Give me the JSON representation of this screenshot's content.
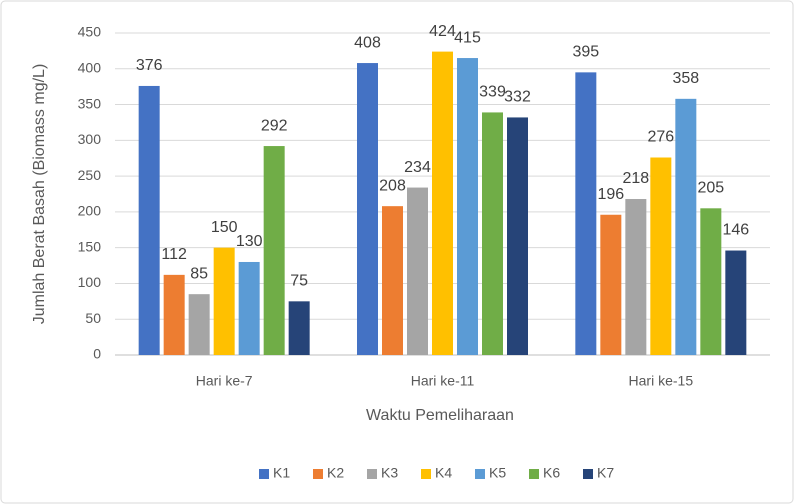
{
  "chart_data": {
    "type": "bar",
    "x_label": "Waktu Pemeliharaan",
    "y_label": "Jumlah Berat Basah (Biomass mg/L)",
    "categories": [
      "Hari ke-7",
      "Hari ke-11",
      "Hari ke-15"
    ],
    "series": [
      {
        "name": "K1",
        "color": "#4472c4",
        "values": [
          376,
          408,
          395
        ]
      },
      {
        "name": "K2",
        "color": "#ed7d31",
        "values": [
          112,
          208,
          196
        ]
      },
      {
        "name": "K3",
        "color": "#a5a5a5",
        "values": [
          85,
          234,
          218
        ]
      },
      {
        "name": "K4",
        "color": "#ffc000",
        "values": [
          150,
          424,
          276
        ]
      },
      {
        "name": "K5",
        "color": "#5b9bd5",
        "values": [
          130,
          415,
          358
        ]
      },
      {
        "name": "K6",
        "color": "#70ad47",
        "values": [
          292,
          339,
          205
        ]
      },
      {
        "name": "K7",
        "color": "#264478",
        "values": [
          75,
          332,
          146
        ]
      }
    ],
    "ylim": [
      0,
      450
    ],
    "yticks": [
      0,
      50,
      100,
      150,
      200,
      250,
      300,
      350,
      400,
      450
    ],
    "grid": true,
    "legend": "bottom"
  }
}
